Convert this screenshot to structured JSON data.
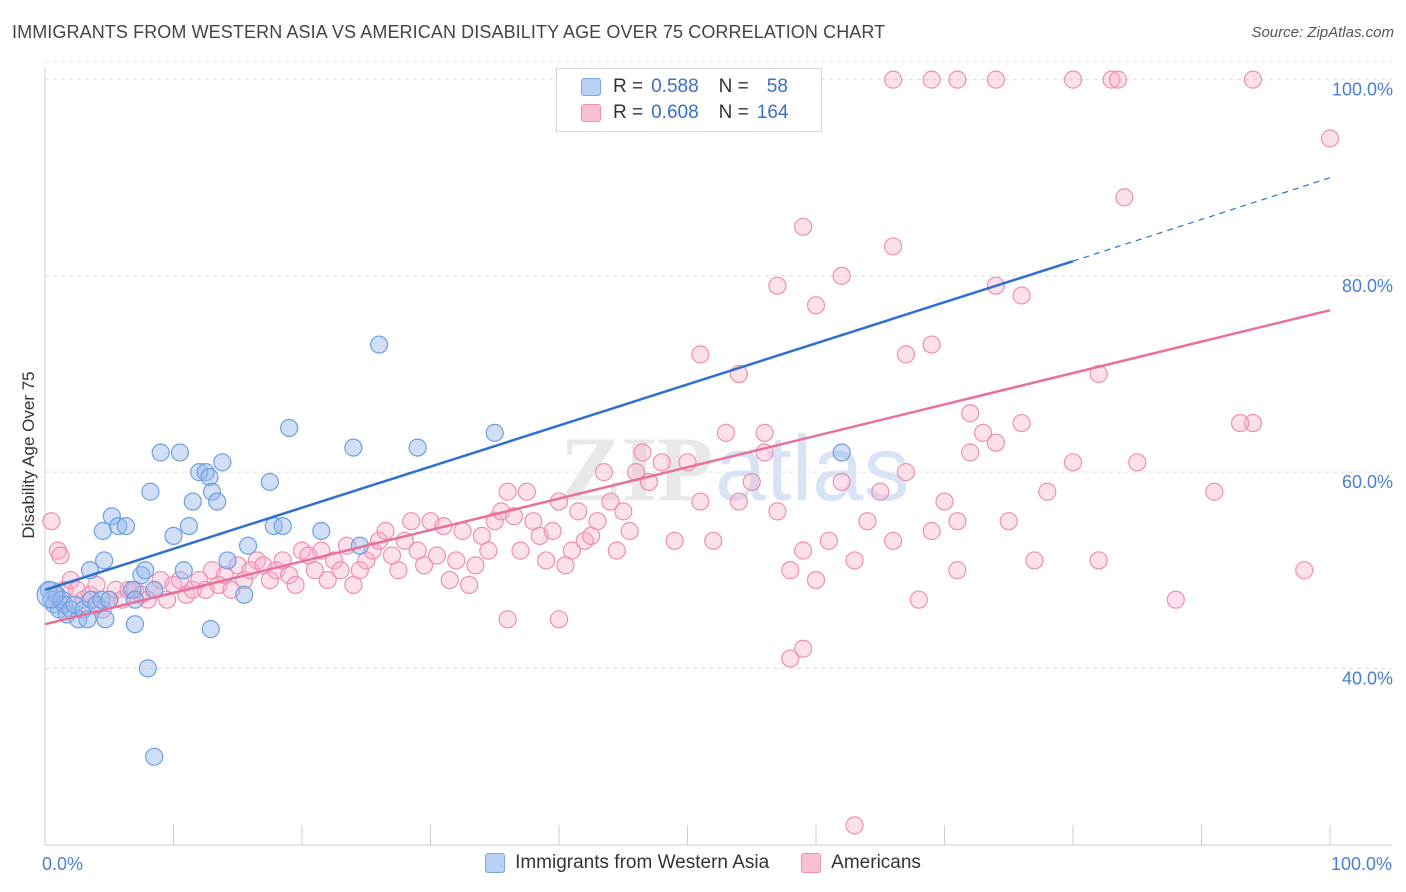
{
  "title": "IMMIGRANTS FROM WESTERN ASIA VS AMERICAN DISABILITY AGE OVER 75 CORRELATION CHART",
  "source": "Source: ZipAtlas.com",
  "watermark": {
    "zip": "ZIP",
    "atlas": "atlas"
  },
  "legend": {
    "r_label": "R =",
    "n_label": "N =",
    "rows": [
      {
        "r": "0.588",
        "n": "58",
        "fill": "#b8d0f2",
        "stroke": "#7aa6e2"
      },
      {
        "r": "0.608",
        "n": "164",
        "fill": "#f9c0d2",
        "stroke": "#ee8fae"
      }
    ]
  },
  "bottom_legend": [
    {
      "label": "Immigrants from Western Asia",
      "fill": "#b8d0f2",
      "stroke": "#7aa6e2"
    },
    {
      "label": "Americans",
      "fill": "#f9c0d2",
      "stroke": "#ee8fae"
    }
  ],
  "chart_data": {
    "type": "scatter",
    "title": "IMMIGRANTS FROM WESTERN ASIA VS AMERICAN DISABILITY AGE OVER 75 CORRELATION CHART",
    "xlabel": "",
    "ylabel": "Disability Age Over 75",
    "xlim": [
      0,
      100
    ],
    "ylim": [
      22,
      102
    ],
    "x_tick_labels": [
      "0.0%",
      "100.0%"
    ],
    "y_ticks": [
      40,
      60,
      80,
      100
    ],
    "y_tick_labels": [
      "40.0%",
      "60.0%",
      "80.0%",
      "100.0%"
    ],
    "grid": true,
    "legend_position": "top-center",
    "series": [
      {
        "name": "Immigrants from Western Asia",
        "color": "#6d9fe0",
        "line_color": "#2f6fcf",
        "trend": {
          "x": [
            0,
            80
          ],
          "y": [
            48.0,
            81.5
          ],
          "dashed_to": [
            100,
            90.0
          ]
        },
        "points": [
          [
            0.3,
            48
          ],
          [
            0.5,
            47
          ],
          [
            0.7,
            46.5
          ],
          [
            0.9,
            47.5
          ],
          [
            1.1,
            46
          ],
          [
            1.3,
            47
          ],
          [
            1.5,
            46.5
          ],
          [
            1.7,
            45.5
          ],
          [
            2.0,
            46
          ],
          [
            2.3,
            46.5
          ],
          [
            2.6,
            45
          ],
          [
            3.0,
            46
          ],
          [
            3.3,
            45
          ],
          [
            3.6,
            47
          ],
          [
            4.0,
            46.5
          ],
          [
            4.4,
            47
          ],
          [
            4.7,
            45
          ],
          [
            5.0,
            47
          ],
          [
            3.5,
            50
          ],
          [
            4.6,
            51
          ],
          [
            4.5,
            54
          ],
          [
            5.2,
            55.5
          ],
          [
            5.7,
            54.5
          ],
          [
            6.3,
            54.5
          ],
          [
            6.8,
            48
          ],
          [
            7.0,
            47
          ],
          [
            7.5,
            49.5
          ],
          [
            7.8,
            50
          ],
          [
            8.2,
            58
          ],
          [
            8.5,
            48
          ],
          [
            9.0,
            62
          ],
          [
            10,
            53.5
          ],
          [
            10.5,
            62
          ],
          [
            10.8,
            50
          ],
          [
            11.2,
            54.5
          ],
          [
            11.5,
            57
          ],
          [
            12,
            60
          ],
          [
            12.5,
            60
          ],
          [
            12.8,
            59.5
          ],
          [
            13,
            58
          ],
          [
            13.4,
            57
          ],
          [
            13.8,
            61
          ],
          [
            14.2,
            51
          ],
          [
            15.5,
            47.5
          ],
          [
            15.8,
            52.5
          ],
          [
            17.5,
            59
          ],
          [
            17.8,
            54.5
          ],
          [
            18.5,
            54.5
          ],
          [
            19,
            64.5
          ],
          [
            21.5,
            54
          ],
          [
            24,
            62.5
          ],
          [
            24.5,
            52.5
          ],
          [
            26,
            73
          ],
          [
            29,
            62.5
          ],
          [
            35,
            64
          ],
          [
            62,
            62
          ],
          [
            8.0,
            40
          ],
          [
            8.5,
            31
          ],
          [
            12.9,
            44
          ],
          [
            7.0,
            44.5
          ]
        ]
      },
      {
        "name": "Americans",
        "color": "#f29ab8",
        "line_color": "#e8709a",
        "trend": {
          "x": [
            0,
            100
          ],
          "y": [
            44.5,
            76.5
          ]
        },
        "points": [
          [
            0.5,
            55
          ],
          [
            1,
            52
          ],
          [
            1.2,
            51.5
          ],
          [
            1.5,
            48
          ],
          [
            2,
            49
          ],
          [
            2.5,
            48
          ],
          [
            3,
            47
          ],
          [
            3.5,
            47.5
          ],
          [
            4,
            48.5
          ],
          [
            4.5,
            46
          ],
          [
            5,
            47
          ],
          [
            5.5,
            48
          ],
          [
            6,
            47
          ],
          [
            6.5,
            48
          ],
          [
            7,
            48
          ],
          [
            7.5,
            47.5
          ],
          [
            8,
            47
          ],
          [
            8.5,
            48
          ],
          [
            9,
            49
          ],
          [
            9.5,
            47
          ],
          [
            10,
            48.5
          ],
          [
            10.5,
            49
          ],
          [
            11,
            47.5
          ],
          [
            11.5,
            48
          ],
          [
            12,
            49
          ],
          [
            12.5,
            48
          ],
          [
            13,
            50
          ],
          [
            13.5,
            48.5
          ],
          [
            14,
            49.5
          ],
          [
            14.5,
            48
          ],
          [
            15,
            50.5
          ],
          [
            15.5,
            49
          ],
          [
            16,
            50
          ],
          [
            16.5,
            51
          ],
          [
            17,
            50.5
          ],
          [
            17.5,
            49
          ],
          [
            18,
            50
          ],
          [
            18.5,
            51
          ],
          [
            19,
            49.5
          ],
          [
            19.5,
            48.5
          ],
          [
            20,
            52
          ],
          [
            20.5,
            51.5
          ],
          [
            21,
            50
          ],
          [
            21.5,
            52
          ],
          [
            22,
            49
          ],
          [
            22.5,
            51
          ],
          [
            23,
            50
          ],
          [
            23.5,
            52.5
          ],
          [
            24,
            48.5
          ],
          [
            24.5,
            50
          ],
          [
            25,
            51
          ],
          [
            25.5,
            52
          ],
          [
            26,
            53
          ],
          [
            26.5,
            54
          ],
          [
            27,
            51.5
          ],
          [
            27.5,
            50
          ],
          [
            28,
            53
          ],
          [
            28.5,
            55
          ],
          [
            29,
            52
          ],
          [
            29.5,
            50.5
          ],
          [
            30,
            55
          ],
          [
            30.5,
            51.5
          ],
          [
            31,
            54.5
          ],
          [
            31.5,
            49
          ],
          [
            32,
            51
          ],
          [
            32.5,
            54
          ],
          [
            33,
            48.5
          ],
          [
            33.5,
            50.5
          ],
          [
            34,
            53.5
          ],
          [
            34.5,
            52
          ],
          [
            35,
            55
          ],
          [
            35.5,
            56
          ],
          [
            36,
            58
          ],
          [
            36.5,
            55.5
          ],
          [
            37,
            52
          ],
          [
            37.5,
            58
          ],
          [
            38,
            55
          ],
          [
            38.5,
            53.5
          ],
          [
            39,
            51
          ],
          [
            39.5,
            54
          ],
          [
            40,
            57
          ],
          [
            40.5,
            50.5
          ],
          [
            41,
            52
          ],
          [
            41.5,
            56
          ],
          [
            42,
            53
          ],
          [
            42.5,
            53.5
          ],
          [
            43,
            55
          ],
          [
            43.5,
            60
          ],
          [
            44,
            57
          ],
          [
            44.5,
            52
          ],
          [
            45,
            56
          ],
          [
            45.5,
            54
          ],
          [
            46,
            60
          ],
          [
            46.5,
            62
          ],
          [
            47,
            59
          ],
          [
            48,
            61
          ],
          [
            49,
            53
          ],
          [
            50,
            61
          ],
          [
            51,
            57
          ],
          [
            52,
            53
          ],
          [
            53,
            64
          ],
          [
            54,
            57
          ],
          [
            55,
            59
          ],
          [
            56,
            62
          ],
          [
            57,
            56
          ],
          [
            58,
            50
          ],
          [
            59,
            52
          ],
          [
            60,
            49
          ],
          [
            61,
            53
          ],
          [
            62,
            59
          ],
          [
            63,
            51
          ],
          [
            64,
            55
          ],
          [
            65,
            58
          ],
          [
            66,
            53
          ],
          [
            67,
            60
          ],
          [
            68,
            47
          ],
          [
            69,
            54
          ],
          [
            70,
            57
          ],
          [
            71,
            50
          ],
          [
            72,
            62
          ],
          [
            73,
            64
          ],
          [
            74,
            63
          ],
          [
            75,
            55
          ],
          [
            76,
            65
          ],
          [
            77,
            51
          ],
          [
            78,
            58
          ],
          [
            80,
            61
          ],
          [
            82,
            51
          ],
          [
            85,
            61
          ],
          [
            88,
            47
          ],
          [
            91,
            58
          ],
          [
            94,
            65
          ],
          [
            98,
            50
          ],
          [
            36,
            45
          ],
          [
            40,
            45
          ],
          [
            51,
            72
          ],
          [
            57,
            79
          ],
          [
            60,
            77
          ],
          [
            62,
            80
          ],
          [
            66,
            83
          ],
          [
            69,
            73
          ],
          [
            71,
            55
          ],
          [
            74,
            79
          ],
          [
            76,
            78
          ],
          [
            59,
            85
          ],
          [
            67,
            72
          ],
          [
            72,
            66
          ],
          [
            82,
            70
          ],
          [
            84,
            88
          ],
          [
            54,
            70
          ],
          [
            56,
            64
          ],
          [
            58,
            41
          ],
          [
            59,
            42
          ],
          [
            63,
            24
          ],
          [
            66,
            100
          ],
          [
            69,
            100
          ],
          [
            71,
            100
          ],
          [
            74,
            100
          ],
          [
            80,
            100
          ],
          [
            83,
            100
          ],
          [
            83.5,
            100
          ],
          [
            94,
            100
          ],
          [
            100,
            94
          ],
          [
            93,
            65
          ]
        ]
      }
    ]
  }
}
